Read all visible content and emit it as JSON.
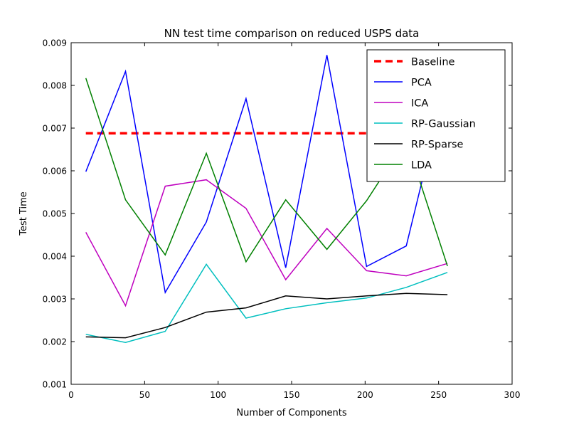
{
  "chart_data": {
    "type": "line",
    "title": "NN test time comparison on reduced USPS data",
    "xlabel": "Number of Components",
    "ylabel": "Test Time",
    "xlim": [
      0,
      300
    ],
    "ylim": [
      0.001,
      0.009
    ],
    "x_ticks": [
      0,
      50,
      100,
      150,
      200,
      250,
      300
    ],
    "y_ticks": [
      0.001,
      0.002,
      0.003,
      0.004,
      0.005,
      0.006,
      0.007,
      0.008,
      0.009
    ],
    "x_tick_labels": [
      "0",
      "50",
      "100",
      "150",
      "200",
      "250",
      "300"
    ],
    "y_tick_labels": [
      "0.001",
      "0.002",
      "0.003",
      "0.004",
      "0.005",
      "0.006",
      "0.007",
      "0.008",
      "0.009"
    ],
    "grid": false,
    "legend_position": "top-right",
    "x": [
      10,
      37,
      64,
      92,
      119,
      146,
      174,
      201,
      228,
      256
    ],
    "series": [
      {
        "name": "Baseline",
        "color": "#ff0000",
        "style": "dashed",
        "x": [
          10,
          256
        ],
        "values": [
          0.00688,
          0.00688
        ]
      },
      {
        "name": "PCA",
        "color": "#0000ff",
        "style": "solid",
        "values": [
          0.00598,
          0.00833,
          0.00315,
          0.0048,
          0.00769,
          0.00373,
          0.00871,
          0.00376,
          0.00424,
          0.0082
        ]
      },
      {
        "name": "ICA",
        "color": "#bf00bf",
        "style": "solid",
        "values": [
          0.00456,
          0.00284,
          0.00564,
          0.00579,
          0.00512,
          0.00345,
          0.00465,
          0.00366,
          0.00354,
          0.00383
        ]
      },
      {
        "name": "RP-Gaussian",
        "color": "#00bfbf",
        "style": "solid",
        "values": [
          0.00217,
          0.00198,
          0.00224,
          0.00381,
          0.00255,
          0.00277,
          0.00291,
          0.00302,
          0.00327,
          0.00362
        ]
      },
      {
        "name": "RP-Sparse",
        "color": "#000000",
        "style": "solid",
        "values": [
          0.00211,
          0.00209,
          0.00233,
          0.00269,
          0.00279,
          0.00307,
          0.003,
          0.00307,
          0.00313,
          0.0031
        ]
      },
      {
        "name": "LDA",
        "color": "#008000",
        "style": "solid",
        "values": [
          0.00817,
          0.00532,
          0.00403,
          0.00641,
          0.00387,
          0.00532,
          0.00416,
          0.0053,
          0.00673,
          0.00377
        ]
      }
    ]
  }
}
